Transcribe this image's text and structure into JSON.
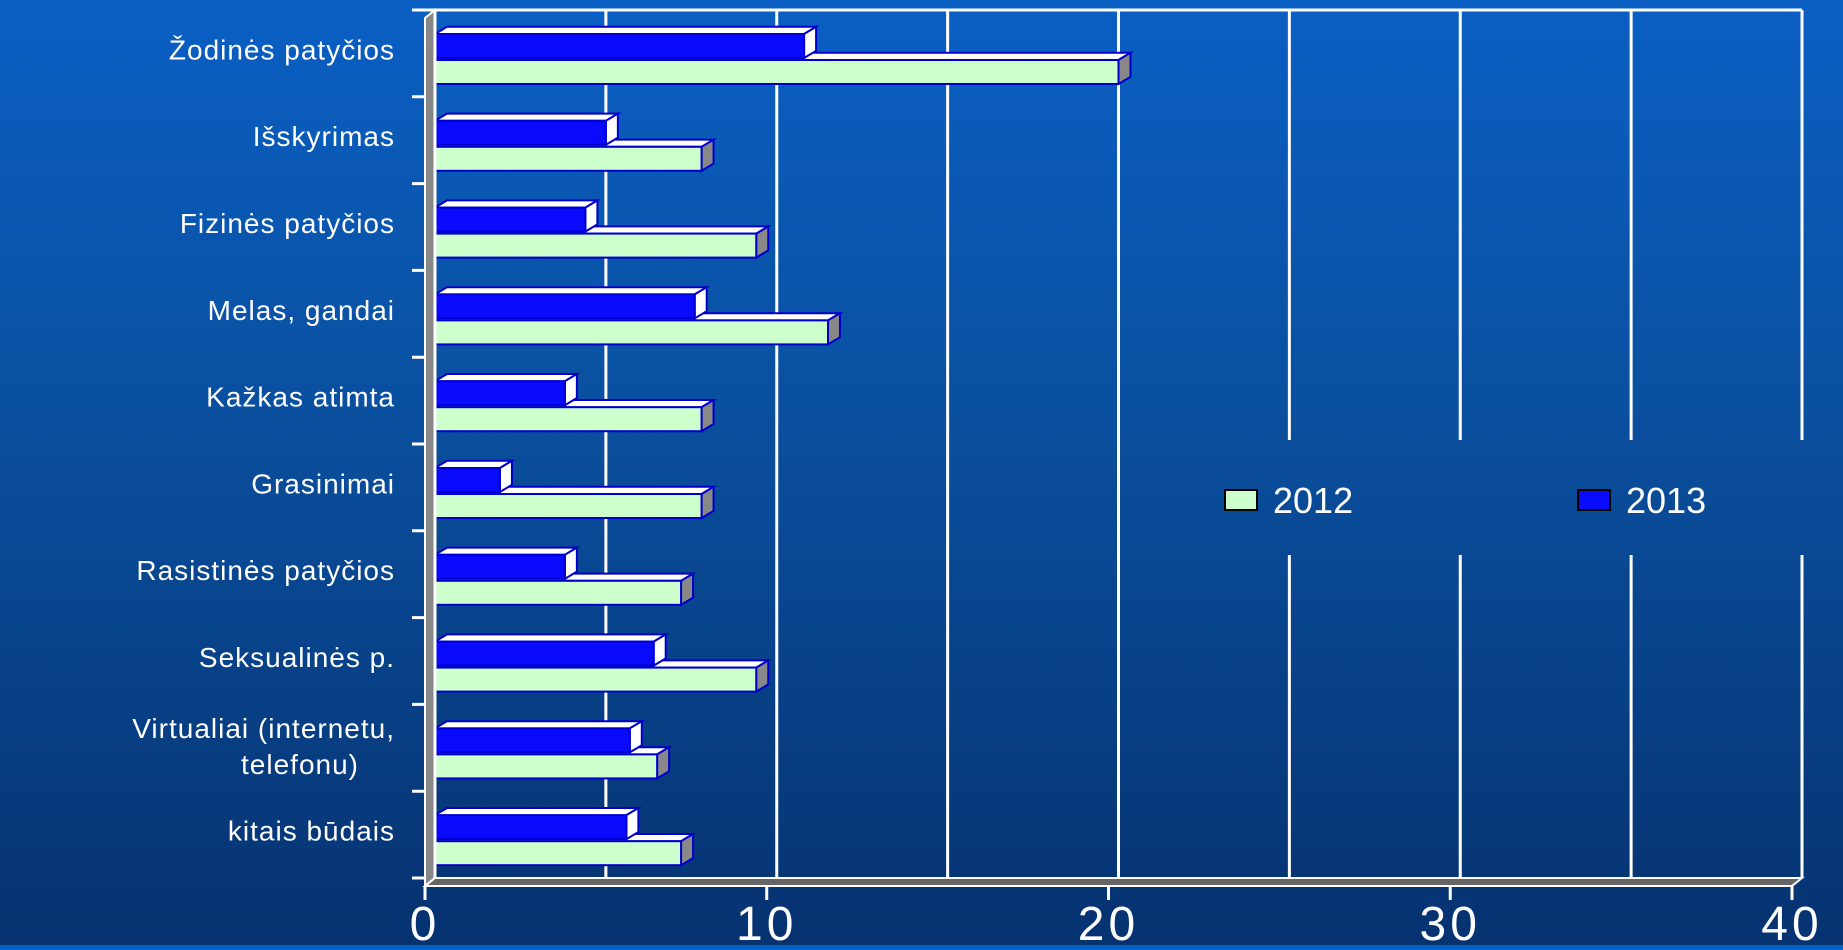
{
  "chart_data": {
    "type": "bar",
    "orientation": "horizontal",
    "categories": [
      "Žodinės patyčios",
      "Išskyrimas",
      "Fizinės patyčios",
      "Melas, gandai",
      "Kažkas atimta",
      "Grasinimai",
      "Rasistinės patyčios",
      "Seksualinės p.",
      "Virtualiai (internetu, telefonu)",
      "kitais būdais"
    ],
    "category_lines": [
      [
        "Žodinės patyčios"
      ],
      [
        "Išskyrimas"
      ],
      [
        "Fizinės patyčios"
      ],
      [
        "Melas, gandai"
      ],
      [
        "Kažkas atimta"
      ],
      [
        "Grasinimai"
      ],
      [
        "Rasistinės patyčios"
      ],
      [
        "Seksualinės p."
      ],
      [
        "Virtualiai (internetu,",
        "telefonu)"
      ],
      [
        "kitais būdais"
      ]
    ],
    "series": [
      {
        "name": "2012",
        "color": "#ccffcc",
        "values": [
          20,
          7.8,
          9.4,
          11.5,
          7.8,
          7.8,
          7.2,
          9.4,
          6.5,
          7.2
        ]
      },
      {
        "name": "2013",
        "color": "#0a0aff",
        "values": [
          10.8,
          5,
          4.4,
          7.6,
          3.8,
          1.9,
          3.8,
          6.4,
          5.7,
          5.6
        ]
      }
    ],
    "xlim": [
      0,
      40
    ],
    "xticks": [
      "0",
      "10",
      "20",
      "30",
      "40"
    ],
    "grid": true,
    "legend": "right"
  }
}
